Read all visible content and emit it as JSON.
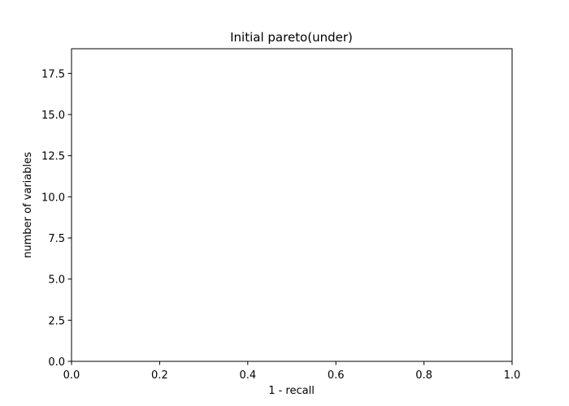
{
  "chart_data": {
    "type": "scatter",
    "title": "Initial pareto(under)",
    "xlabel": "1 - recall",
    "ylabel": "number of variables",
    "xlim": [
      0.0,
      1.0
    ],
    "ylim": [
      0.0,
      19.0
    ],
    "xticks": [
      "0.0",
      "0.2",
      "0.4",
      "0.6",
      "0.8",
      "1.0"
    ],
    "yticks": [
      "0.0",
      "2.5",
      "5.0",
      "7.5",
      "10.0",
      "12.5",
      "15.0",
      "17.5"
    ],
    "series": [],
    "grid": false,
    "legend": "none"
  }
}
